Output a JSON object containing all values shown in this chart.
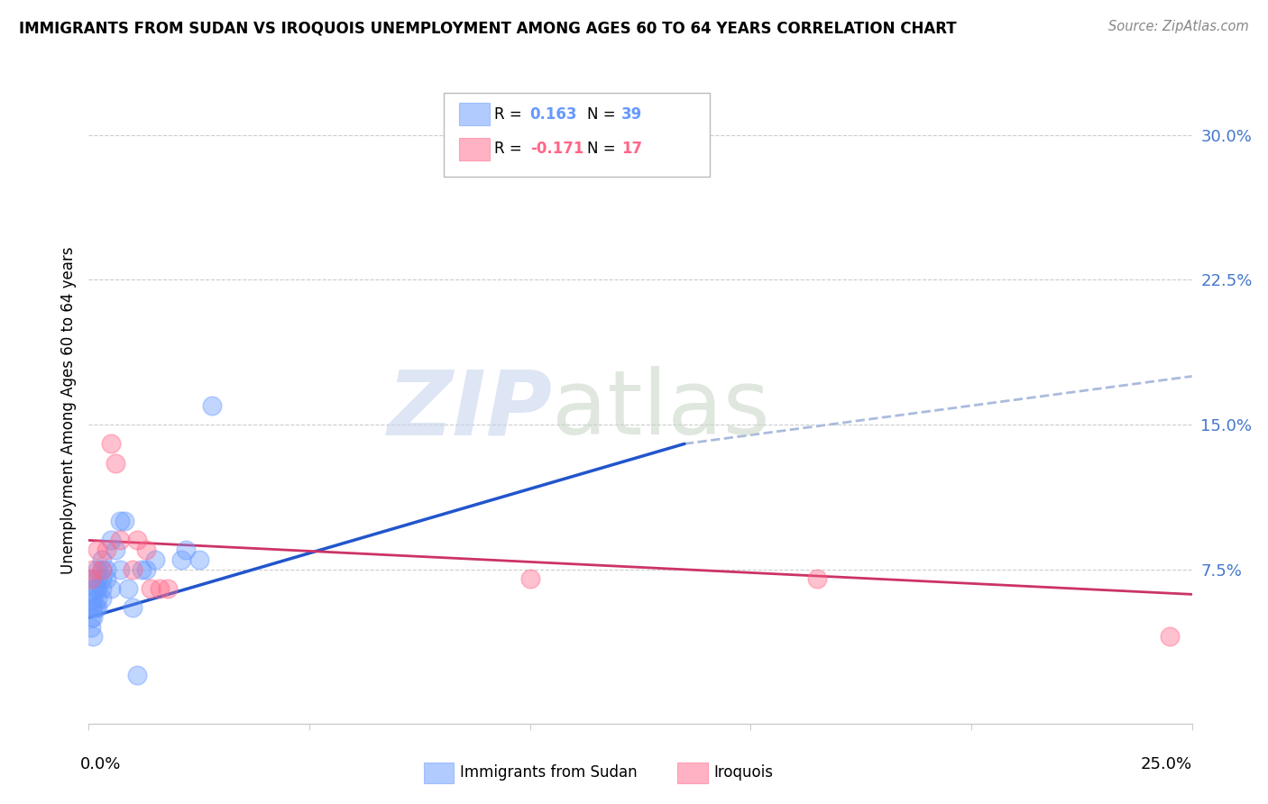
{
  "title": "IMMIGRANTS FROM SUDAN VS IROQUOIS UNEMPLOYMENT AMONG AGES 60 TO 64 YEARS CORRELATION CHART",
  "source": "Source: ZipAtlas.com",
  "ylabel": "Unemployment Among Ages 60 to 64 years",
  "blue_color": "#6699ff",
  "pink_color": "#ff6688",
  "blue_line_color": "#2255cc",
  "pink_line_color": "#cc3366",
  "dashed_color": "#aabbdd",
  "grid_color": "#cccccc",
  "background_color": "#ffffff",
  "ytick_color": "#4477cc",
  "xlim": [
    0.0,
    0.25
  ],
  "ylim": [
    -0.005,
    0.32
  ],
  "ytick_values": [
    0.075,
    0.15,
    0.225,
    0.3
  ],
  "ytick_labels": [
    "7.5%",
    "15.0%",
    "22.5%",
    "30.0%"
  ],
  "sudan_x": [
    0.0005,
    0.0005,
    0.0008,
    0.001,
    0.001,
    0.001,
    0.001,
    0.001,
    0.001,
    0.0015,
    0.0015,
    0.002,
    0.002,
    0.002,
    0.002,
    0.002,
    0.003,
    0.003,
    0.003,
    0.003,
    0.003,
    0.004,
    0.004,
    0.005,
    0.005,
    0.006,
    0.007,
    0.007,
    0.008,
    0.009,
    0.01,
    0.011,
    0.012,
    0.013,
    0.015,
    0.021,
    0.022,
    0.025,
    0.028
  ],
  "sudan_y": [
    0.045,
    0.05,
    0.055,
    0.04,
    0.05,
    0.055,
    0.06,
    0.065,
    0.07,
    0.055,
    0.065,
    0.055,
    0.06,
    0.065,
    0.07,
    0.075,
    0.06,
    0.065,
    0.07,
    0.075,
    0.08,
    0.07,
    0.075,
    0.065,
    0.09,
    0.085,
    0.075,
    0.1,
    0.1,
    0.065,
    0.055,
    0.02,
    0.075,
    0.075,
    0.08,
    0.08,
    0.085,
    0.08,
    0.16
  ],
  "iroquois_x": [
    0.0005,
    0.001,
    0.002,
    0.003,
    0.004,
    0.005,
    0.006,
    0.007,
    0.01,
    0.011,
    0.013,
    0.014,
    0.016,
    0.018,
    0.1,
    0.165,
    0.245
  ],
  "iroquois_y": [
    0.07,
    0.075,
    0.085,
    0.075,
    0.085,
    0.14,
    0.13,
    0.09,
    0.075,
    0.09,
    0.085,
    0.065,
    0.065,
    0.065,
    0.07,
    0.07,
    0.04
  ],
  "blue_line_x": [
    0.0,
    0.135
  ],
  "blue_line_y": [
    0.05,
    0.14
  ],
  "dashed_line_x": [
    0.135,
    0.25
  ],
  "dashed_line_y": [
    0.14,
    0.175
  ],
  "pink_line_x": [
    0.0,
    0.25
  ],
  "pink_line_y": [
    0.09,
    0.062
  ]
}
